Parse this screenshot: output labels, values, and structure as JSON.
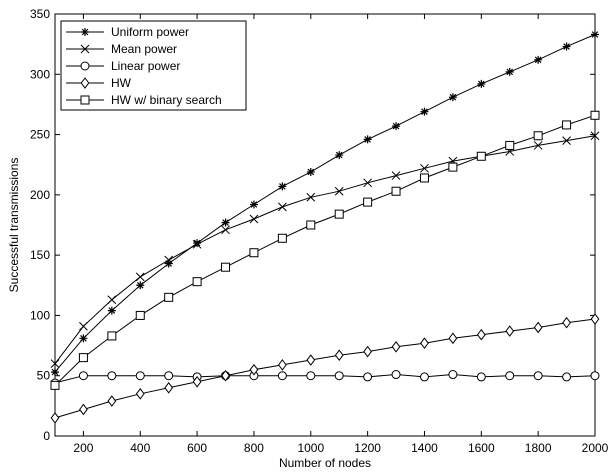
{
  "chart_data": {
    "type": "line",
    "title": "",
    "xlabel": "Number of nodes",
    "ylabel": "Successful transmissions",
    "xlim": [
      100,
      2000
    ],
    "ylim": [
      0,
      350
    ],
    "xticks": [
      200,
      400,
      600,
      800,
      1000,
      1200,
      1400,
      1600,
      1800,
      2000
    ],
    "yticks": [
      0,
      50,
      100,
      150,
      200,
      250,
      300,
      350
    ],
    "grid": false,
    "legend_position": "top-left",
    "x": [
      100,
      200,
      300,
      400,
      500,
      600,
      700,
      800,
      900,
      1000,
      1100,
      1200,
      1300,
      1400,
      1500,
      1600,
      1700,
      1800,
      1900,
      2000
    ],
    "series": [
      {
        "name": "Uniform power",
        "marker": "star",
        "values": [
          53,
          81,
          104,
          125,
          143,
          160,
          177,
          192,
          207,
          219,
          233,
          246,
          257,
          269,
          281,
          292,
          302,
          312,
          323,
          333
        ]
      },
      {
        "name": "Mean power",
        "marker": "x",
        "values": [
          60,
          91,
          113,
          132,
          146,
          159,
          171,
          180,
          190,
          198,
          203,
          210,
          216,
          222,
          228,
          232,
          236,
          241,
          245,
          249
        ]
      },
      {
        "name": "Linear power",
        "marker": "circle",
        "values": [
          44,
          50,
          50,
          50,
          50,
          49,
          50,
          50,
          50,
          50,
          50,
          49,
          51,
          49,
          51,
          49,
          50,
          50,
          49,
          50
        ]
      },
      {
        "name": "HW",
        "marker": "diamond",
        "values": [
          15,
          22,
          29,
          35,
          40,
          45,
          50,
          55,
          59,
          63,
          67,
          70,
          74,
          77,
          81,
          84,
          87,
          90,
          94,
          97
        ]
      },
      {
        "name": "HW w/ binary search",
        "marker": "square",
        "values": [
          42,
          65,
          83,
          100,
          115,
          128,
          140,
          152,
          164,
          175,
          184,
          194,
          203,
          214,
          223,
          232,
          241,
          249,
          258,
          266
        ]
      }
    ]
  }
}
